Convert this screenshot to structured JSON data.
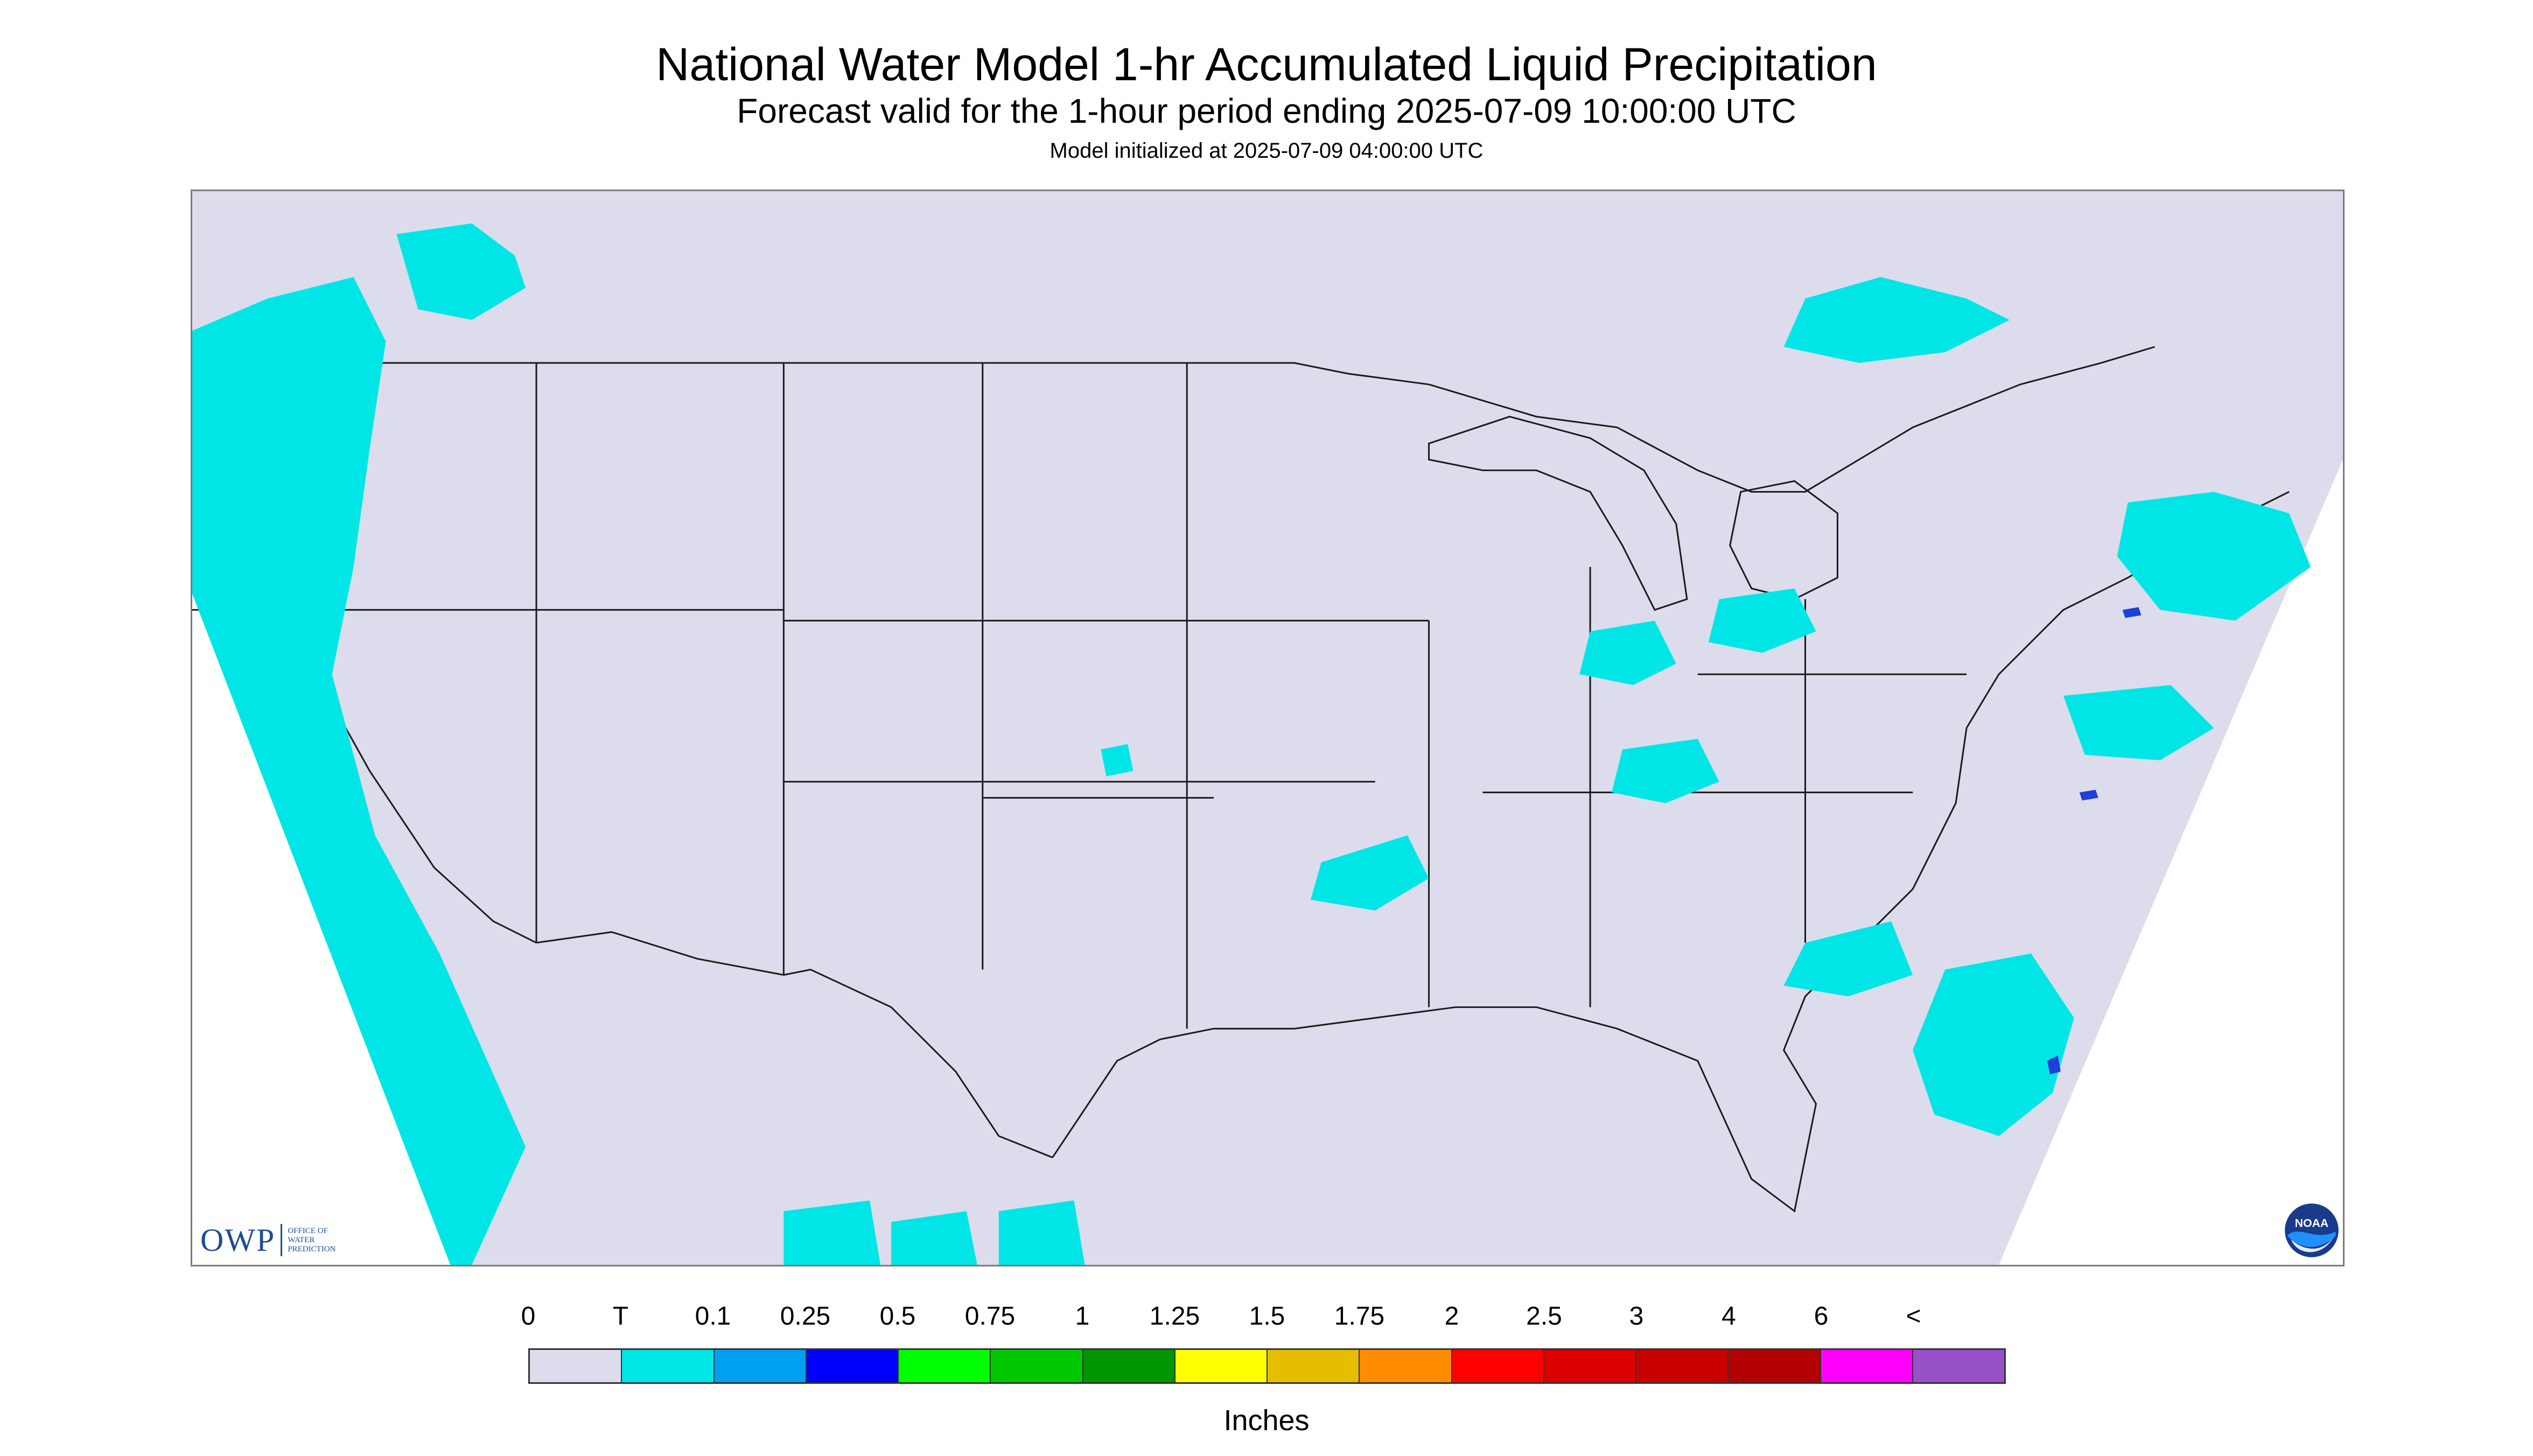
{
  "title": "National Water Model 1-hr Accumulated Liquid Precipitation",
  "subtitle": "Forecast valid for the 1-hour period ending 2025-07-09 10:00:00 UTC",
  "init_text": "Model initialized at 2025-07-09 04:00:00 UTC",
  "logo_owp": {
    "initials": "OWP",
    "name": "OFFICE OF\nWATER\nPREDICTION",
    "color": "#1d4f91"
  },
  "logo_noaa": {
    "text": "NOAA",
    "color_dark": "#1a3a8a",
    "color_light": "#1e90ff"
  },
  "map": {
    "background": "#dcdcec",
    "boundary_color": "#1a1a1a",
    "precip_trace_color": "#00e6e6",
    "precip_heavy_color": "#1e3fd8"
  },
  "legend": {
    "labels": [
      "0",
      "T",
      "0.1",
      "0.25",
      "0.5",
      "0.75",
      "1",
      "1.25",
      "1.5",
      "1.75",
      "2",
      "2.5",
      "3",
      "4",
      "6",
      "<"
    ],
    "colors": [
      "#dcdcec",
      "#00e6e6",
      "#00a0f0",
      "#0000ff",
      "#00ff00",
      "#00c800",
      "#009600",
      "#ffff00",
      "#e6be00",
      "#ff8c00",
      "#ff0000",
      "#dc0000",
      "#c80000",
      "#b40000",
      "#ff00ff",
      "#9650c8"
    ],
    "units": "Inches"
  }
}
